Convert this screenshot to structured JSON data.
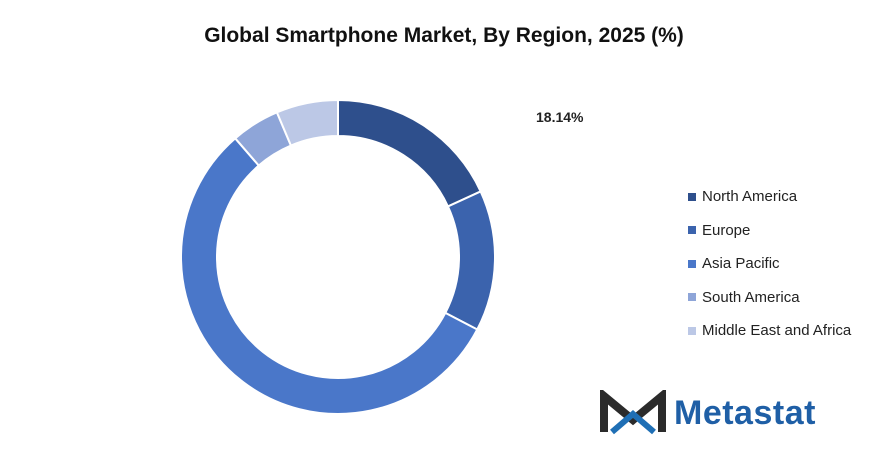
{
  "title": "Global Smartphone Market, By Region, 2025 (%)",
  "chart_data": {
    "type": "pie",
    "style": "donut",
    "title": "Global Smartphone Market, By Region, 2025 (%)",
    "categories": [
      "North America",
      "Europe",
      "Asia Pacific",
      "South America",
      "Middle East and Africa"
    ],
    "values": [
      18.14,
      14.5,
      56.0,
      5.0,
      6.36
    ],
    "colors": [
      "#2e4f8c",
      "#3b63ad",
      "#4a77c9",
      "#8ea5d8",
      "#bcc8e6"
    ],
    "data_labels": [
      {
        "category": "North America",
        "text": "18.14%"
      }
    ],
    "legend_position": "right"
  },
  "logo": {
    "name": "Metastat",
    "icon": "metastat-m-logo-icon"
  }
}
